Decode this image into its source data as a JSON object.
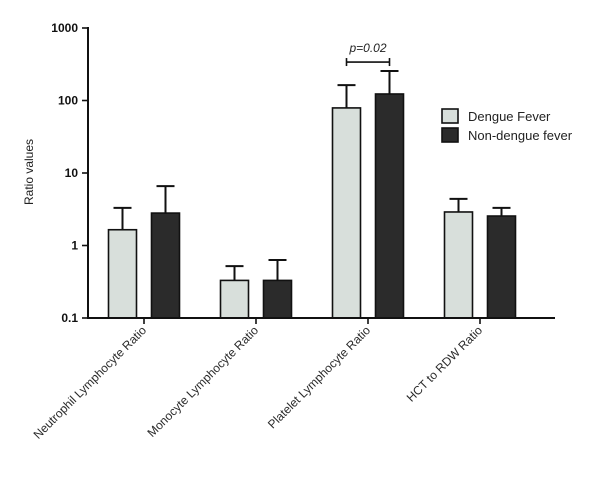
{
  "chart_data": {
    "type": "bar",
    "categories": [
      "Neutrophil Lymphocyte Ratio",
      "Monocyte Lymphocyte Ratio",
      "Platelet Lymphocyte Ratio",
      "HCT to RDW Ratio"
    ],
    "series": [
      {
        "name": "Dengue Fever",
        "values": [
          1.65,
          0.33,
          79,
          2.9
        ],
        "error_top": [
          3.3,
          0.52,
          163,
          4.4
        ],
        "color": "#d8dfdb"
      },
      {
        "name": "Non-dengue fever",
        "values": [
          2.8,
          0.33,
          123,
          2.55
        ],
        "error_top": [
          6.6,
          0.63,
          255,
          3.3
        ],
        "color": "#2b2b2b"
      }
    ],
    "ylabel": "Ratio values",
    "yscale": "log",
    "ylim": [
      0.1,
      1000
    ],
    "yticks": [
      0.1,
      1,
      10,
      100,
      1000
    ],
    "ytick_labels": [
      "0.1",
      "1",
      "10",
      "100",
      "1000"
    ],
    "grid": false,
    "legend_position": "right",
    "bar_edge_color": "#111111",
    "annotations": [
      {
        "text": "p=0.02",
        "category_index": 2,
        "between_series": [
          0,
          1
        ]
      }
    ]
  }
}
